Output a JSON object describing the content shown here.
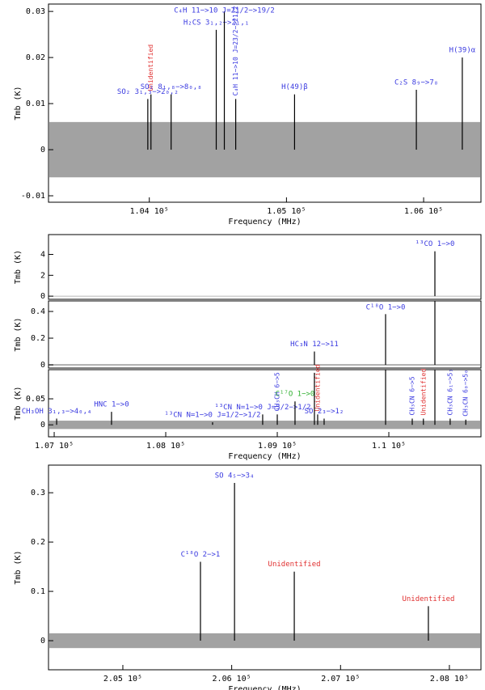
{
  "chart_data": [
    {
      "type": "line",
      "ylabel": "Tmb (K)",
      "xlabel": "Frequency (MHz)",
      "color": "#000000",
      "xlim": [
        103265,
        106418
      ],
      "ylim": [
        -0.0114,
        0.0316
      ],
      "xticks": [
        {
          "value": 104000,
          "label": "1.04 10⁵"
        },
        {
          "value": 105000,
          "label": "1.05 10⁵"
        },
        {
          "value": 106000,
          "label": "1.06 10⁵"
        }
      ],
      "yticks": [
        -0.01,
        0,
        0.01,
        0.02,
        0.03
      ],
      "noise": [
        -0.006,
        0.006
      ],
      "lines": [
        {
          "x": 103989,
          "peak": 0.011,
          "label": "SO₂ 3₁,₃−>2₀,₂",
          "label_color": "#3a3ae0"
        },
        {
          "x": 104012,
          "peak": 0.012,
          "label": "Unidentified",
          "label_color": "#e03030",
          "rotated": true
        },
        {
          "x": 104159,
          "peak": 0.012,
          "label": "SO₂ 8₁,₈−>8₀,₈",
          "label_color": "#3a3ae0"
        },
        {
          "x": 104488,
          "peak": 0.026,
          "label": "H₂CS 3₁,₂−>2₁,₁",
          "label_color": "#3a3ae0"
        },
        {
          "x": 104547,
          "peak": 0.03,
          "label": "C₄H 11−>10 J=21/2−>19/2",
          "label_color": "#3a3ae0"
        },
        {
          "x": 104630,
          "peak": 0.011,
          "label": "C₄H 11−>10 J=23/2−>21/2",
          "label_color": "#3a3ae0",
          "rotated": true
        },
        {
          "x": 105059,
          "peak": 0.012,
          "label": "H(49)β",
          "label_color": "#3a3ae0"
        },
        {
          "x": 105947,
          "peak": 0.013,
          "label": "C₂S 8₉−>7₈",
          "label_color": "#3a3ae0"
        },
        {
          "x": 106282,
          "peak": 0.02,
          "label": "H(39)α",
          "label_color": "#3a3ae0"
        }
      ]
    },
    {
      "type": "line",
      "ylabel": "Tmb (K)",
      "color": "#000000",
      "xlim": [
        106949,
        110826
      ],
      "ylim": [
        -0.3,
        5.9
      ],
      "yticks": [
        0,
        2,
        4
      ],
      "noise": [
        -0.03,
        0.03
      ],
      "lines": [
        {
          "x": 110413,
          "peak": 4.3,
          "label": "¹³CO 1−>0",
          "label_color": "#3a3ae0"
        }
      ]
    },
    {
      "type": "line",
      "ylabel": "Tmb (K)",
      "color": "#000000",
      "xlim": [
        106949,
        110826
      ],
      "ylim": [
        -0.024,
        0.479
      ],
      "yticks": [
        0,
        0.2,
        0.4
      ],
      "noise": [
        -0.005,
        0.005
      ],
      "lines": [
        {
          "x": 109333,
          "peak": 0.1,
          "label": "HC₃N 12−>11",
          "label_color": "#3a3ae0"
        },
        {
          "x": 109971,
          "peak": 0.38,
          "label": "C¹⁸O 1−>0",
          "label_color": "#3a3ae0"
        },
        {
          "x": 110413,
          "peak": 0.6
        }
      ]
    },
    {
      "type": "line",
      "ylabel": "Tmb (K)",
      "xlabel": "Frequency (MHz)",
      "color": "#000000",
      "xlim": [
        106949,
        110826
      ],
      "ylim": [
        -0.023,
        0.106
      ],
      "xticks": [
        {
          "value": 107000,
          "label": "1.07 10⁵"
        },
        {
          "value": 108000,
          "label": "1.08 10⁵"
        },
        {
          "value": 109000,
          "label": "1.09 10⁵"
        },
        {
          "value": 110000,
          "label": "1.1 10⁵"
        }
      ],
      "yticks": [
        0,
        0.05
      ],
      "noise": [
        -0.008,
        0.008
      ],
      "lines": [
        {
          "x": 107022,
          "peak": 0.012,
          "label": "CH₃OH 3₁,₃−>4₀,₄",
          "label_color": "#3a3ae0"
        },
        {
          "x": 107514,
          "peak": 0.025,
          "label": "HNC 1−>0",
          "label_color": "#3a3ae0"
        },
        {
          "x": 108869,
          "peak": 0.02,
          "label": "¹³CN N=1−>0 J=3/2−>1/2",
          "label_color": "#3a3ae0"
        },
        {
          "x": 108420,
          "peak": 0.005,
          "label": "¹³CN N=1−>0 J=1/2−>1/2",
          "label_color": "#3a3ae0"
        },
        {
          "x": 109000,
          "peak": 0.02,
          "label": "CH₃CH 6−>5",
          "label_color": "#3a3ae0",
          "rotated": true
        },
        {
          "x": 109159,
          "peak": 0.045,
          "label": "C¹⁷O 1−>0",
          "label_color": "#30b030"
        },
        {
          "x": 109333,
          "peak": 0.1
        },
        {
          "x": 109362,
          "peak": 0.02,
          "label": "Unidentified",
          "label_color": "#e03030",
          "rotated": true
        },
        {
          "x": 109420,
          "peak": 0.012,
          "label": "SO 2₃−>1₂",
          "label_color": "#3a3ae0"
        },
        {
          "x": 109971,
          "peak": 0.11
        },
        {
          "x": 110210,
          "peak": 0.012,
          "label": "CH₃CN 6−>5",
          "label_color": "#3a3ae0",
          "rotated": true
        },
        {
          "x": 110310,
          "peak": 0.012,
          "label": "Unidentified",
          "label_color": "#e03030",
          "rotated": true
        },
        {
          "x": 110413,
          "peak": 0.11
        },
        {
          "x": 110550,
          "peak": 0.012,
          "label": "CH₃CN 6₁−>5₁",
          "label_color": "#3a3ae0",
          "rotated": true
        },
        {
          "x": 110690,
          "peak": 0.01,
          "label": "CH₃CN 6₀−>5₀",
          "label_color": "#3a3ae0",
          "rotated": true
        }
      ]
    },
    {
      "type": "line",
      "ylabel": "Tmb (K)",
      "xlabel": "Frequency (MHz)",
      "color": "#000000",
      "xlim": [
        204317,
        208290
      ],
      "ylim": [
        -0.059,
        0.356
      ],
      "xticks": [
        {
          "value": 205000,
          "label": "2.05 10⁵"
        },
        {
          "value": 206000,
          "label": "2.06 10⁵"
        },
        {
          "value": 207000,
          "label": "2.07 10⁵"
        },
        {
          "value": 208000,
          "label": "2.08 10⁵"
        }
      ],
      "yticks": [
        0,
        0.1,
        0.2,
        0.3
      ],
      "noise": [
        -0.015,
        0.015
      ],
      "lines": [
        {
          "x": 205713,
          "peak": 0.16,
          "label": "C¹⁸O 2−>1",
          "label_color": "#3a3ae0"
        },
        {
          "x": 206026,
          "peak": 0.32,
          "label": "SO 4₅−>3₄",
          "label_color": "#3a3ae0"
        },
        {
          "x": 206575,
          "peak": 0.14,
          "label": "Unidentified",
          "label_color": "#e03030"
        },
        {
          "x": 207807,
          "peak": 0.07,
          "label": "Unidentified",
          "label_color": "#e03030"
        }
      ]
    }
  ]
}
